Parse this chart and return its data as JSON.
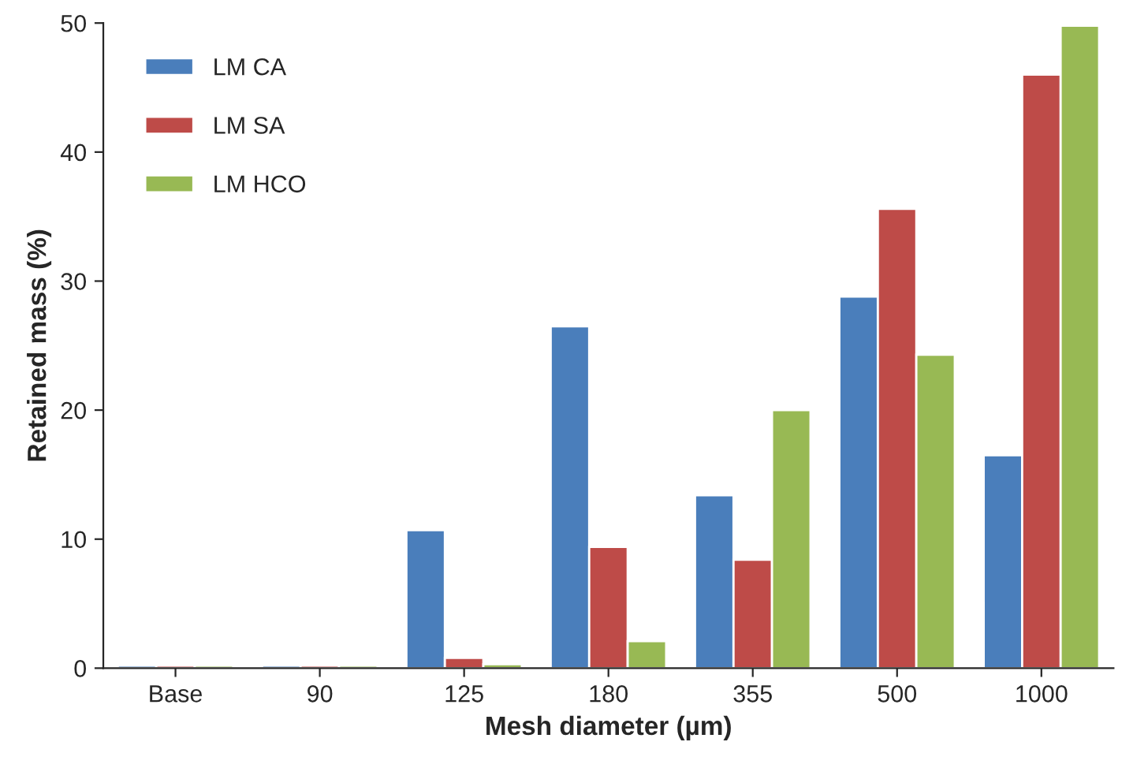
{
  "chart_data": {
    "type": "bar",
    "xlabel": "Mesh diameter (µm)",
    "ylabel": "Retained mass (%)",
    "categories": [
      "Base",
      "90",
      "125",
      "180",
      "355",
      "500",
      "1000"
    ],
    "series": [
      {
        "name": "LM CA",
        "color": "#4a7ebb",
        "values": [
          0.2,
          0.2,
          10.7,
          26.5,
          13.4,
          28.8,
          16.5
        ]
      },
      {
        "name": "LM SA",
        "color": "#be4b48",
        "values": [
          0.2,
          0.2,
          0.8,
          9.4,
          8.4,
          35.6,
          46.0
        ]
      },
      {
        "name": "LM HCO",
        "color": "#98b954",
        "values": [
          0.2,
          0.2,
          0.3,
          2.1,
          20.0,
          24.3,
          49.8
        ]
      }
    ],
    "ylim": [
      0,
      50
    ],
    "yticks": [
      0,
      10,
      20,
      30,
      40,
      50
    ],
    "grid": false,
    "legend": "top left"
  }
}
